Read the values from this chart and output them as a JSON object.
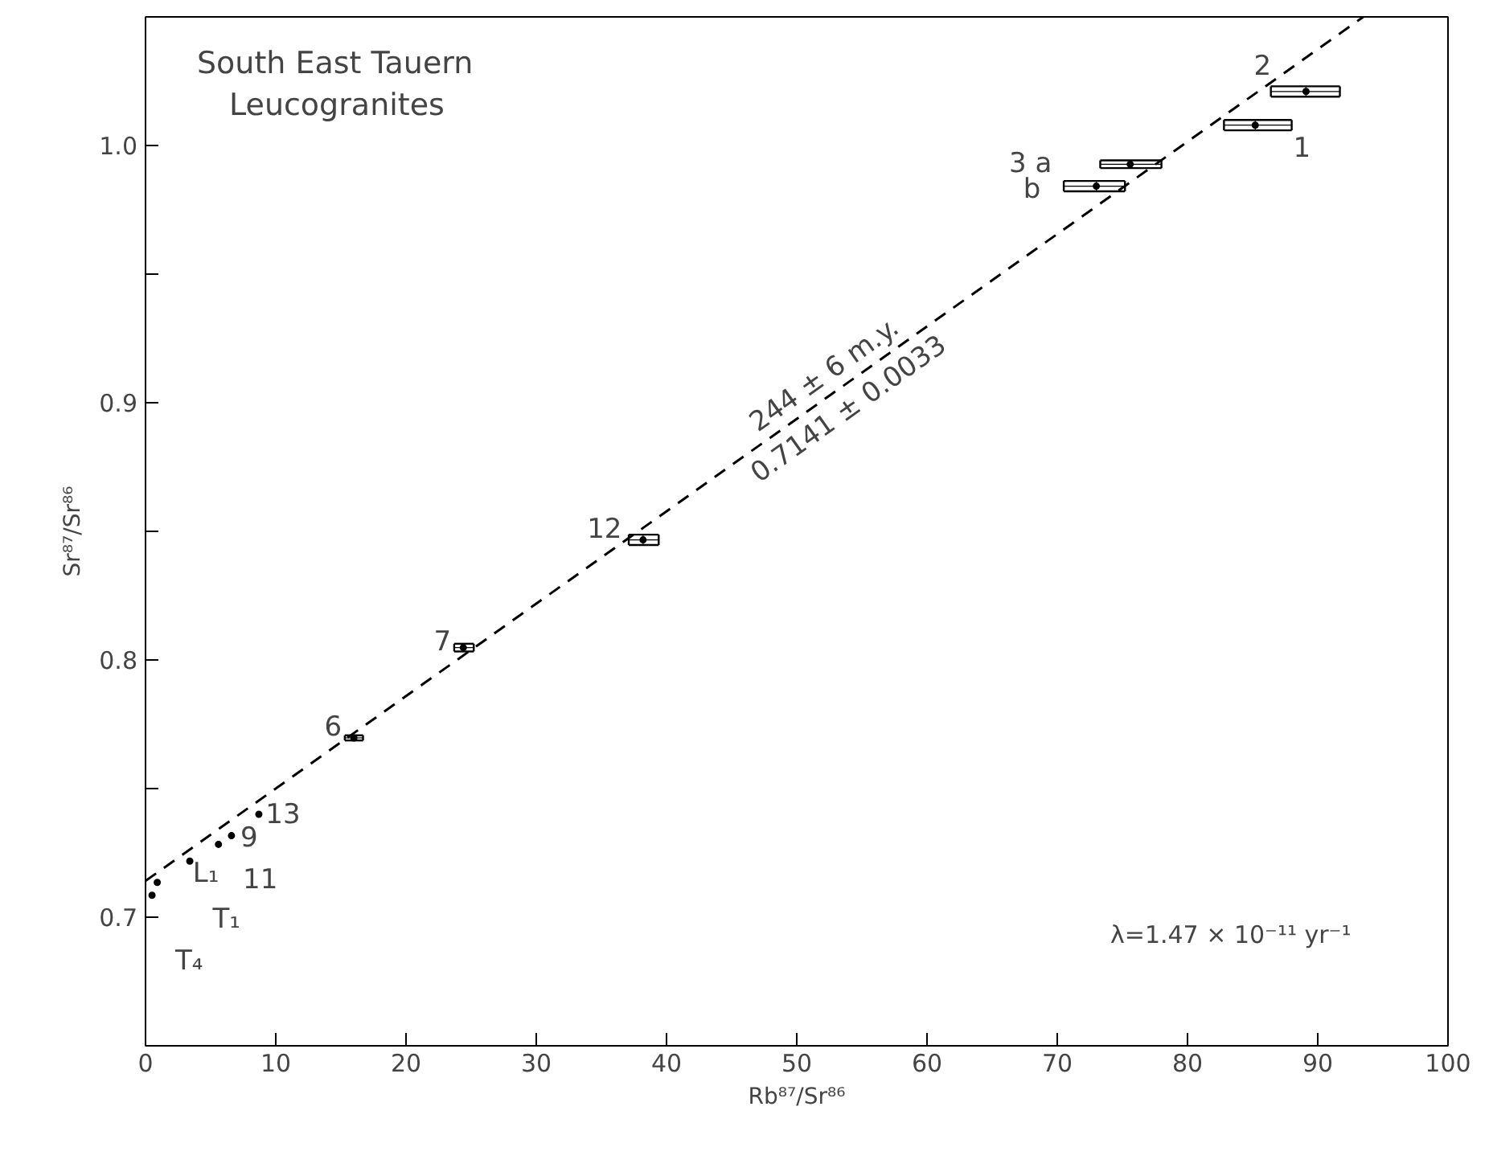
{
  "chart_data": {
    "type": "scatter",
    "title": "South East Tauern\nLeucogranites",
    "xlabel": "Rb⁸⁷/Sr⁸⁶",
    "ylabel": "Sr⁸⁷/Sr⁸⁶",
    "xlim": [
      0,
      100
    ],
    "ylim": [
      0.65,
      1.05
    ],
    "xticks": [
      0,
      10,
      20,
      30,
      40,
      50,
      60,
      70,
      80,
      90,
      100
    ],
    "yticks": [
      0.7,
      {
        "value": 0.75,
        "label": null
      },
      0.8,
      {
        "value": 0.85,
        "label": null
      },
      0.9,
      {
        "value": 0.95,
        "label": null
      },
      {
        "value": 1.0,
        "label": "1.0"
      }
    ],
    "grid": false,
    "series": [
      {
        "color": "#000000",
        "marker": "circle",
        "x": [
          89.1,
          85.2,
          75.6,
          73.0,
          38.2,
          24.4,
          16.0,
          8.7,
          6.6,
          5.6,
          3.4,
          0.9,
          0.5
        ],
        "values": [
          1.021,
          1.0079,
          0.9927,
          0.9842,
          0.8467,
          0.8048,
          0.7697,
          0.74,
          0.7317,
          0.7283,
          0.7218,
          0.7135,
          0.7085
        ],
        "xerrors": [
          [
            86.4,
            91.7
          ],
          [
            82.8,
            88.0
          ],
          [
            73.3,
            78.0
          ],
          [
            70.5,
            75.2
          ],
          [
            37.1,
            39.4
          ],
          [
            23.7,
            25.2
          ],
          [
            15.3,
            16.7
          ],
          null,
          null,
          null,
          null,
          null,
          null
        ],
        "errors": [
          0.002,
          0.002,
          0.0015,
          0.002,
          0.002,
          0.0015,
          0.001,
          null,
          null,
          null,
          null,
          null,
          null
        ]
      },
      {
        "type": "line",
        "color": "#000000",
        "line_style": "dashed",
        "x": [
          0,
          93.5
        ],
        "values": [
          0.7141,
          1.05
        ]
      }
    ],
    "annotations": [
      {
        "text": "2",
        "x": 89.1,
        "y": 1.021
      },
      {
        "text": "1",
        "x": 85.2,
        "y": 1.0079
      },
      {
        "text": "3 a",
        "x": 75.6,
        "y": 0.9927
      },
      {
        "text": "b",
        "x": 73.0,
        "y": 0.9842
      },
      {
        "text": "12",
        "x": 38.2,
        "y": 0.8467
      },
      {
        "text": "7",
        "x": 24.4,
        "y": 0.8048
      },
      {
        "text": "6",
        "x": 16.0,
        "y": 0.7697
      },
      {
        "text": "13",
        "x": 8.7,
        "y": 0.74
      },
      {
        "text": "9",
        "x": 6.6,
        "y": 0.7317
      },
      {
        "text": "11",
        "x": 5.6,
        "y": 0.7283
      },
      {
        "text": "L₁",
        "x": 3.4,
        "y": 0.7218
      },
      {
        "text": "T₁",
        "x": 0.9,
        "y": 0.7135
      },
      {
        "text": "T₄",
        "x": 0.5,
        "y": 0.7085
      },
      {
        "text": "244 ± 6 m.y.\n0.7141 ± 0.0033",
        "x": 53,
        "y": 0.9045
      },
      "λ=1.47 × 10⁻¹¹ yr⁻¹"
    ]
  }
}
